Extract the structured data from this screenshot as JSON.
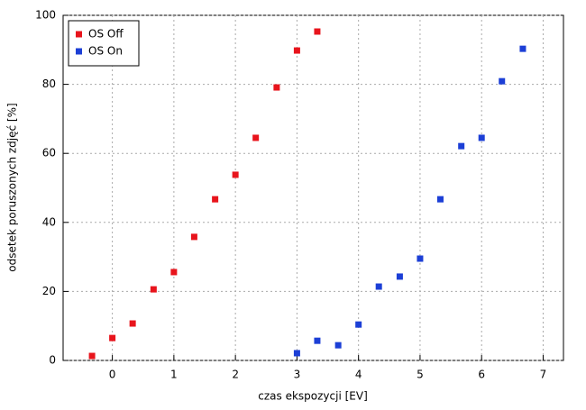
{
  "chart_data": {
    "type": "scatter",
    "x_label": "czas ekspozycji [EV]",
    "y_label": "odsetek poruszonych zdjęć [%]",
    "xlim": [
      -0.8,
      7.33
    ],
    "ylim": [
      0,
      100
    ],
    "xticks": [
      0,
      1,
      2,
      3,
      4,
      5,
      6,
      7
    ],
    "yticks": [
      0,
      20,
      40,
      60,
      80,
      100
    ],
    "grid": true,
    "legend": "top-left",
    "series": [
      {
        "name": "OS Off",
        "color": "#e8141c",
        "x": [
          -0.33,
          0,
          0.33,
          0.67,
          1,
          1.33,
          1.67,
          2,
          2.33,
          2.67,
          3,
          3.33
        ],
        "values": [
          1.3,
          6.5,
          10.7,
          20.6,
          25.6,
          35.8,
          46.7,
          53.8,
          64.5,
          79.1,
          89.8,
          95.3
        ]
      },
      {
        "name": "OS On",
        "color": "#1c3fd6",
        "x": [
          3,
          3.33,
          3.67,
          4,
          4.33,
          4.67,
          5,
          5.33,
          5.67,
          6,
          6.33,
          6.67
        ],
        "values": [
          2.1,
          5.7,
          4.4,
          10.4,
          21.4,
          24.3,
          29.5,
          46.7,
          62.1,
          64.5,
          80.9,
          90.3
        ]
      }
    ]
  }
}
